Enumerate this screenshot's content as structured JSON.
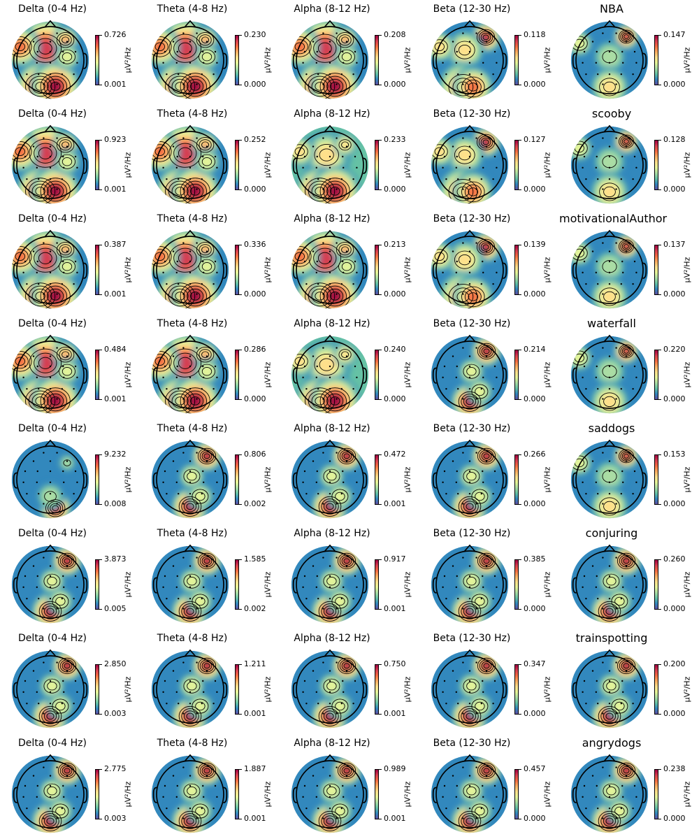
{
  "colormap": [
    "#5e4fa2",
    "#3288bd",
    "#66c2a5",
    "#abdda4",
    "#e6f598",
    "#fee08b",
    "#fdae61",
    "#f46d43",
    "#d53e4f",
    "#9e0142"
  ],
  "unit_label": "µV²/Hz",
  "chart_data": {
    "type": "heatmap",
    "description": "EEG topographic power maps per frequency band for each stimulus video",
    "bands": [
      "Delta (0-4 Hz)",
      "Theta (4-8 Hz)",
      "Alpha (8-12 Hz)",
      "Beta (12-30 Hz)"
    ],
    "colorbar_label": "µV²/Hz",
    "rows": [
      {
        "name": "NBA",
        "panels": [
          {
            "title": "Delta (0-4 Hz)",
            "max": "0.726",
            "min": "0.001",
            "pattern": "delta"
          },
          {
            "title": "Theta (4-8 Hz)",
            "max": "0.230",
            "min": "0.000",
            "pattern": "delta"
          },
          {
            "title": "Alpha (8-12 Hz)",
            "max": "0.208",
            "min": "0.000",
            "pattern": "delta"
          },
          {
            "title": "Beta (12-30 Hz)",
            "max": "0.118",
            "min": "0.000",
            "pattern": "beta"
          },
          {
            "title": "NBA",
            "max": "0.147",
            "min": "0.000",
            "pattern": "summary"
          }
        ]
      },
      {
        "name": "scooby",
        "panels": [
          {
            "title": "Delta (0-4 Hz)",
            "max": "0.923",
            "min": "0.001",
            "pattern": "delta"
          },
          {
            "title": "Theta (4-8 Hz)",
            "max": "0.252",
            "min": "0.000",
            "pattern": "delta"
          },
          {
            "title": "Alpha (8-12 Hz)",
            "max": "0.233",
            "min": "0.000",
            "pattern": "mid"
          },
          {
            "title": "Beta (12-30 Hz)",
            "max": "0.127",
            "min": "0.000",
            "pattern": "beta"
          },
          {
            "title": "scooby",
            "max": "0.128",
            "min": "0.000",
            "pattern": "summary"
          }
        ]
      },
      {
        "name": "motivationalAuthor",
        "panels": [
          {
            "title": "Delta (0-4 Hz)",
            "max": "0.387",
            "min": "0.001",
            "pattern": "delta"
          },
          {
            "title": "Theta (4-8 Hz)",
            "max": "0.336",
            "min": "0.000",
            "pattern": "delta"
          },
          {
            "title": "Alpha (8-12 Hz)",
            "max": "0.213",
            "min": "0.000",
            "pattern": "delta"
          },
          {
            "title": "Beta (12-30 Hz)",
            "max": "0.139",
            "min": "0.000",
            "pattern": "beta"
          },
          {
            "title": "motivationalAuthor",
            "max": "0.137",
            "min": "0.000",
            "pattern": "summary"
          }
        ]
      },
      {
        "name": "waterfall",
        "panels": [
          {
            "title": "Delta (0-4 Hz)",
            "max": "0.484",
            "min": "0.001",
            "pattern": "delta"
          },
          {
            "title": "Theta (4-8 Hz)",
            "max": "0.286",
            "min": "0.000",
            "pattern": "delta"
          },
          {
            "title": "Alpha (8-12 Hz)",
            "max": "0.240",
            "min": "0.000",
            "pattern": "mid"
          },
          {
            "title": "Beta (12-30 Hz)",
            "max": "0.214",
            "min": "0.000",
            "pattern": "frontal"
          },
          {
            "title": "waterfall",
            "max": "0.220",
            "min": "0.000",
            "pattern": "summary"
          }
        ]
      },
      {
        "name": "saddogs",
        "panels": [
          {
            "title": "Delta (0-4 Hz)",
            "max": "9.232",
            "min": "0.008",
            "pattern": "sparse"
          },
          {
            "title": "Theta (4-8 Hz)",
            "max": "0.806",
            "min": "0.002",
            "pattern": "frontal"
          },
          {
            "title": "Alpha (8-12 Hz)",
            "max": "0.472",
            "min": "0.001",
            "pattern": "frontal"
          },
          {
            "title": "Beta (12-30 Hz)",
            "max": "0.266",
            "min": "0.000",
            "pattern": "frontal"
          },
          {
            "title": "saddogs",
            "max": "0.153",
            "min": "0.000",
            "pattern": "summary"
          }
        ]
      },
      {
        "name": "conjuring",
        "panels": [
          {
            "title": "Delta (0-4 Hz)",
            "max": "3.873",
            "min": "0.005",
            "pattern": "frontal"
          },
          {
            "title": "Theta (4-8 Hz)",
            "max": "1.585",
            "min": "0.002",
            "pattern": "frontal"
          },
          {
            "title": "Alpha (8-12 Hz)",
            "max": "0.917",
            "min": "0.001",
            "pattern": "frontal"
          },
          {
            "title": "Beta (12-30 Hz)",
            "max": "0.385",
            "min": "0.000",
            "pattern": "frontal"
          },
          {
            "title": "conjuring",
            "max": "0.260",
            "min": "0.000",
            "pattern": "frontal"
          }
        ]
      },
      {
        "name": "trainspotting",
        "panels": [
          {
            "title": "Delta (0-4 Hz)",
            "max": "2.850",
            "min": "0.003",
            "pattern": "frontal"
          },
          {
            "title": "Theta (4-8 Hz)",
            "max": "1.211",
            "min": "0.001",
            "pattern": "frontal"
          },
          {
            "title": "Alpha (8-12 Hz)",
            "max": "0.750",
            "min": "0.001",
            "pattern": "frontal"
          },
          {
            "title": "Beta (12-30 Hz)",
            "max": "0.347",
            "min": "0.000",
            "pattern": "frontal"
          },
          {
            "title": "trainspotting",
            "max": "0.200",
            "min": "0.000",
            "pattern": "frontal"
          }
        ]
      },
      {
        "name": "angrydogs",
        "panels": [
          {
            "title": "Delta (0-4 Hz)",
            "max": "2.775",
            "min": "0.003",
            "pattern": "frontal"
          },
          {
            "title": "Theta (4-8 Hz)",
            "max": "1.887",
            "min": "0.001",
            "pattern": "frontal"
          },
          {
            "title": "Alpha (8-12 Hz)",
            "max": "0.989",
            "min": "0.001",
            "pattern": "frontal"
          },
          {
            "title": "Beta (12-30 Hz)",
            "max": "0.457",
            "min": "0.000",
            "pattern": "frontal"
          },
          {
            "title": "angrydogs",
            "max": "0.238",
            "min": "0.000",
            "pattern": "frontal"
          }
        ]
      }
    ]
  }
}
